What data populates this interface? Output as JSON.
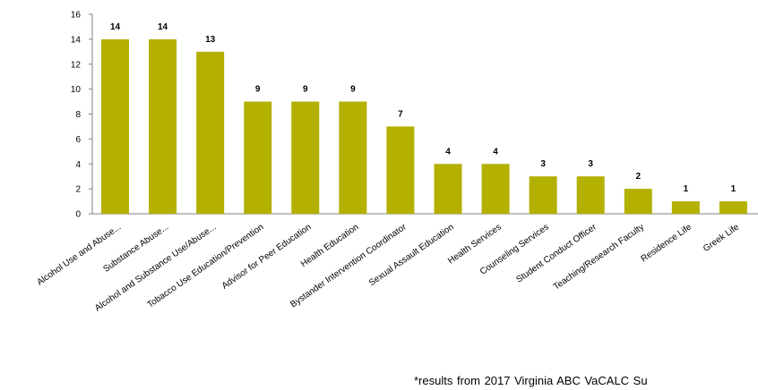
{
  "chart_data": {
    "type": "bar",
    "categories": [
      "Alcohol Use and Abuse...",
      "Substance Abuse...",
      "Alcohol and Substance Use/Abuse...",
      "Tobacco Use Education/Prevention",
      "Advisor for Peer Education",
      "Health Education",
      "Bystander Intervention Coordinator",
      "Sexual Assault Education",
      "Health Services",
      "Counseling Services",
      "Student Conduct Officer",
      "Teaching/Research Faculty",
      "Residence Life",
      "Greek Life"
    ],
    "values": [
      14,
      14,
      13,
      9,
      9,
      9,
      7,
      4,
      4,
      3,
      3,
      2,
      1,
      1
    ],
    "ylim": [
      0,
      16
    ],
    "yticks": [
      0,
      2,
      4,
      6,
      8,
      10,
      12,
      14,
      16
    ],
    "bar_color": "#b3b000",
    "grid": false,
    "legend": "none",
    "title": "",
    "xlabel": "",
    "ylabel": ""
  },
  "footnote": "*results  from 2017 Virginia ABC VaCALC Su"
}
